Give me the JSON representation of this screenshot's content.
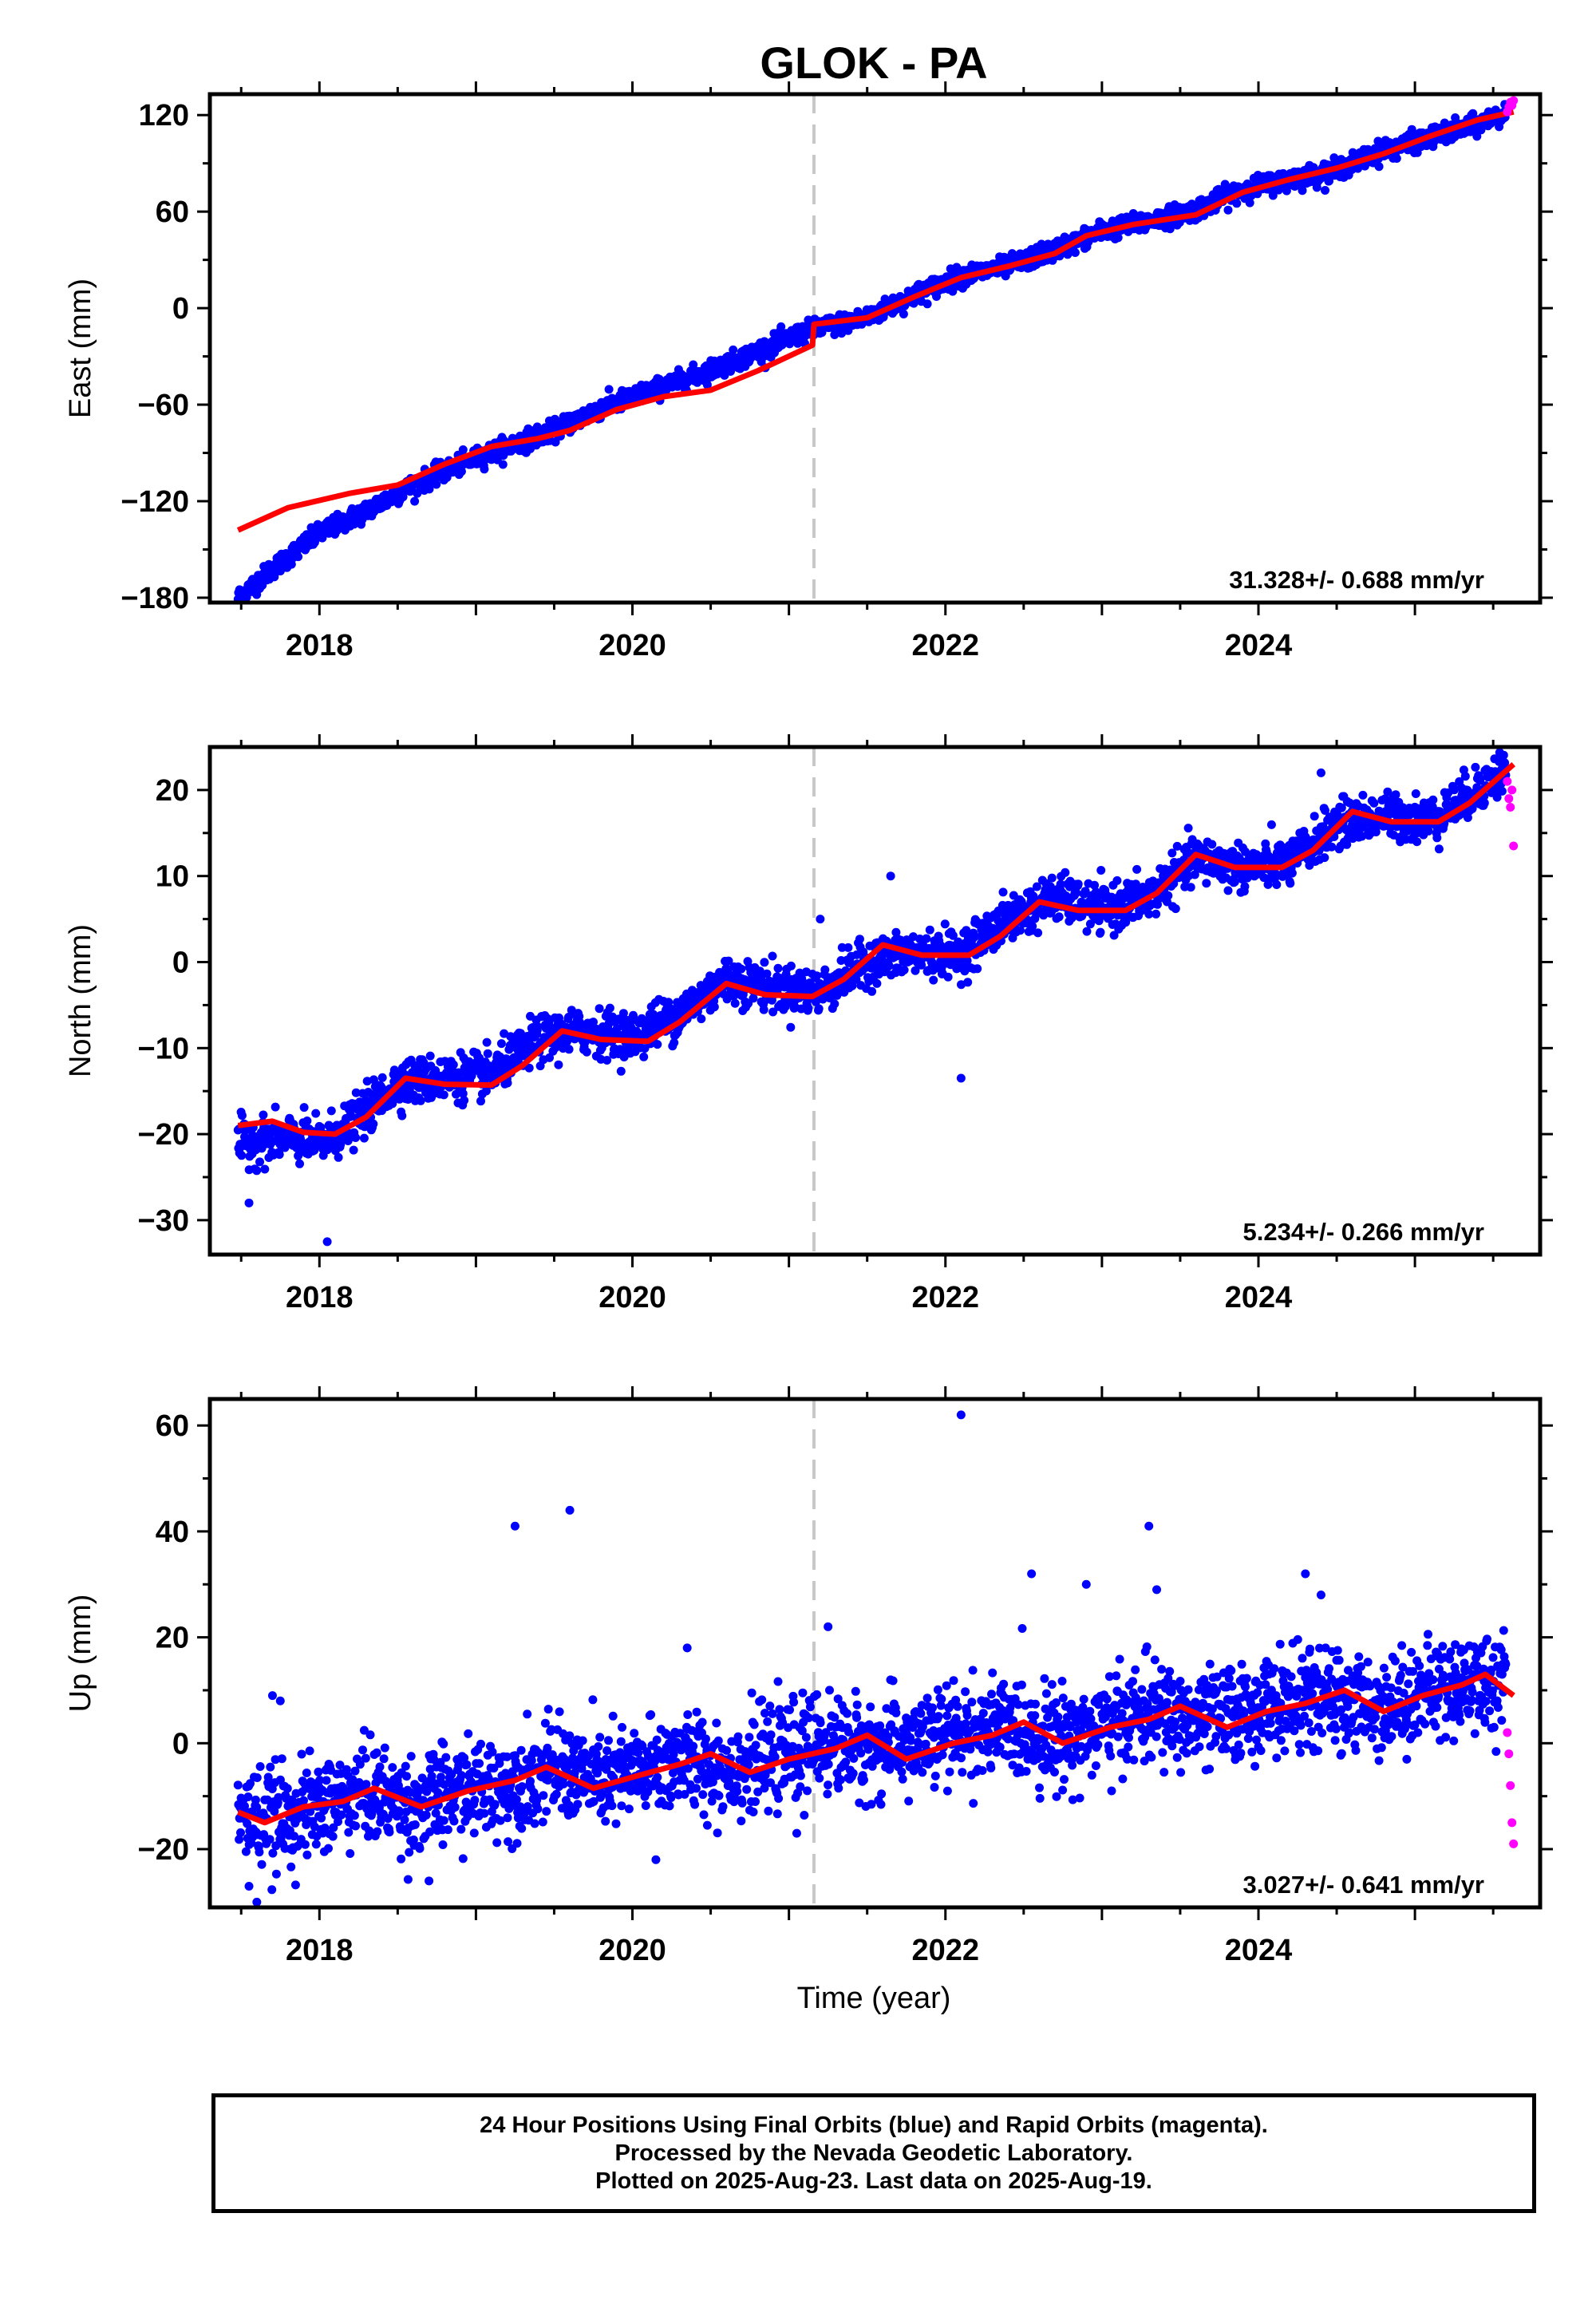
{
  "title": "GLOK - PA",
  "x_axis_label": "Time (year)",
  "footer": {
    "line1": "24 Hour Positions Using Final Orbits (blue) and Rapid Orbits (magenta).",
    "line2": "Processed by the Nevada Geodetic Laboratory.",
    "line3": "Plotted on 2025-Aug-23. Last data on 2025-Aug-19."
  },
  "colors": {
    "final_orbits": "#0000ff",
    "rapid_orbits": "#ff00ff",
    "model": "#ff0000",
    "event_line": "#c8c8c8",
    "axes": "#000000"
  },
  "chart_data": [
    {
      "type": "scatter",
      "component": "East",
      "ylabel": "East (mm)",
      "xlim": [
        2017.3,
        2025.8
      ],
      "ylim": [
        -183,
        133
      ],
      "xticks": [
        2018,
        2020,
        2022,
        2024
      ],
      "yticks": [
        -180,
        -120,
        -60,
        0,
        60,
        120
      ],
      "rate_text": "31.328+/- 0.688 mm/yr",
      "event_line_x": 2021.16,
      "start_x": 2017.48,
      "end_final_x": 2025.58,
      "end_x": 2025.63,
      "series": [
        {
          "name": "Final Orbits",
          "color": "#0000ff",
          "trend": [
            [
              2017.48,
              -180
            ],
            [
              2017.7,
              -162
            ],
            [
              2018.0,
              -140
            ],
            [
              2018.3,
              -126
            ],
            [
              2018.6,
              -110
            ],
            [
              2018.9,
              -97
            ],
            [
              2019.2,
              -86
            ],
            [
              2019.5,
              -76
            ],
            [
              2019.8,
              -62
            ],
            [
              2020.1,
              -52
            ],
            [
              2020.4,
              -42
            ],
            [
              2020.7,
              -31
            ],
            [
              2021.0,
              -19
            ],
            [
              2021.16,
              -13
            ],
            [
              2021.5,
              -6
            ],
            [
              2021.8,
              8
            ],
            [
              2022.1,
              20
            ],
            [
              2022.4,
              26
            ],
            [
              2022.7,
              36
            ],
            [
              2023.0,
              48
            ],
            [
              2023.3,
              54
            ],
            [
              2023.6,
              61
            ],
            [
              2023.9,
              74
            ],
            [
              2024.2,
              80
            ],
            [
              2024.5,
              86
            ],
            [
              2024.8,
              98
            ],
            [
              2025.1,
              106
            ],
            [
              2025.4,
              114
            ],
            [
              2025.58,
              122
            ]
          ],
          "noise": 3.0
        },
        {
          "name": "Rapid Orbits",
          "color": "#ff00ff",
          "points": [
            [
              2025.59,
              122
            ],
            [
              2025.6,
              125
            ],
            [
              2025.61,
              128
            ],
            [
              2025.62,
              126
            ],
            [
              2025.63,
              129
            ]
          ]
        }
      ],
      "model": [
        [
          2017.48,
          -138
        ],
        [
          2017.8,
          -124
        ],
        [
          2018.2,
          -115
        ],
        [
          2018.5,
          -110
        ],
        [
          2018.8,
          -97
        ],
        [
          2019.1,
          -86
        ],
        [
          2019.4,
          -81
        ],
        [
          2019.6,
          -76
        ],
        [
          2019.9,
          -63
        ],
        [
          2020.2,
          -55
        ],
        [
          2020.5,
          -51
        ],
        [
          2020.8,
          -39
        ],
        [
          2021.15,
          -23
        ],
        [
          2021.16,
          -10
        ],
        [
          2021.5,
          -6
        ],
        [
          2021.8,
          7
        ],
        [
          2022.1,
          19
        ],
        [
          2022.4,
          26
        ],
        [
          2022.7,
          34
        ],
        [
          2022.9,
          45
        ],
        [
          2023.2,
          52
        ],
        [
          2023.6,
          58
        ],
        [
          2023.9,
          72
        ],
        [
          2024.2,
          80
        ],
        [
          2024.5,
          87
        ],
        [
          2024.8,
          96
        ],
        [
          2025.1,
          107
        ],
        [
          2025.4,
          117
        ],
        [
          2025.63,
          122
        ]
      ]
    },
    {
      "type": "scatter",
      "component": "North",
      "ylabel": "North (mm)",
      "xlim": [
        2017.3,
        2025.8
      ],
      "ylim": [
        -34,
        25
      ],
      "xticks": [
        2018,
        2020,
        2022,
        2024
      ],
      "yticks": [
        -30,
        -20,
        -10,
        0,
        10,
        20
      ],
      "rate_text": "5.234+/- 0.266 mm/yr",
      "event_line_x": 2021.16,
      "start_x": 2017.48,
      "end_final_x": 2025.58,
      "end_x": 2025.63,
      "series": [
        {
          "name": "Final Orbits",
          "color": "#0000ff",
          "trend": [
            [
              2017.48,
              -21
            ],
            [
              2017.8,
              -20.5
            ],
            [
              2018.0,
              -21
            ],
            [
              2018.2,
              -19
            ],
            [
              2018.5,
              -14
            ],
            [
              2018.8,
              -13.5
            ],
            [
              2019.1,
              -13
            ],
            [
              2019.4,
              -9
            ],
            [
              2019.7,
              -8
            ],
            [
              2020.0,
              -8.5
            ],
            [
              2020.3,
              -6
            ],
            [
              2020.6,
              -2
            ],
            [
              2020.9,
              -3
            ],
            [
              2021.2,
              -3.5
            ],
            [
              2021.5,
              0
            ],
            [
              2021.8,
              1
            ],
            [
              2022.1,
              1
            ],
            [
              2022.4,
              5
            ],
            [
              2022.7,
              7.5
            ],
            [
              2023.0,
              6
            ],
            [
              2023.3,
              7.5
            ],
            [
              2023.6,
              12
            ],
            [
              2023.9,
              11
            ],
            [
              2024.2,
              11.5
            ],
            [
              2024.5,
              16
            ],
            [
              2024.8,
              17
            ],
            [
              2025.1,
              16.5
            ],
            [
              2025.4,
              20
            ],
            [
              2025.58,
              22.5
            ]
          ],
          "noise": 1.3,
          "outliers": [
            [
              2017.55,
              -28
            ],
            [
              2018.05,
              -32.5
            ],
            [
              2021.2,
              5
            ],
            [
              2022.1,
              -13.5
            ],
            [
              2021.65,
              10
            ],
            [
              2023.6,
              13.5
            ],
            [
              2024.4,
              22
            ]
          ]
        },
        {
          "name": "Rapid Orbits",
          "color": "#ff00ff",
          "points": [
            [
              2025.59,
              21
            ],
            [
              2025.6,
              19
            ],
            [
              2025.61,
              18
            ],
            [
              2025.62,
              20
            ],
            [
              2025.63,
              13.5
            ]
          ]
        }
      ],
      "model": [
        [
          2017.48,
          -19
        ],
        [
          2017.7,
          -18.5
        ],
        [
          2017.9,
          -19.8
        ],
        [
          2018.1,
          -20
        ],
        [
          2018.3,
          -18
        ],
        [
          2018.55,
          -13.5
        ],
        [
          2018.8,
          -14.2
        ],
        [
          2019.1,
          -14.3
        ],
        [
          2019.3,
          -12
        ],
        [
          2019.55,
          -8
        ],
        [
          2019.8,
          -9
        ],
        [
          2020.1,
          -9.2
        ],
        [
          2020.3,
          -7
        ],
        [
          2020.6,
          -2.5
        ],
        [
          2020.85,
          -3.8
        ],
        [
          2021.15,
          -4
        ],
        [
          2021.35,
          -2
        ],
        [
          2021.6,
          2
        ],
        [
          2021.85,
          0.8
        ],
        [
          2022.15,
          0.8
        ],
        [
          2022.35,
          3
        ],
        [
          2022.6,
          7
        ],
        [
          2022.85,
          6
        ],
        [
          2023.15,
          6
        ],
        [
          2023.35,
          8
        ],
        [
          2023.6,
          12.5
        ],
        [
          2023.85,
          11
        ],
        [
          2024.15,
          11
        ],
        [
          2024.35,
          13
        ],
        [
          2024.6,
          17.5
        ],
        [
          2024.85,
          16.3
        ],
        [
          2025.15,
          16.3
        ],
        [
          2025.35,
          18.5
        ],
        [
          2025.63,
          23
        ]
      ]
    },
    {
      "type": "scatter",
      "component": "Up",
      "ylabel": "Up (mm)",
      "xlim": [
        2017.3,
        2025.8
      ],
      "ylim": [
        -31,
        65
      ],
      "xticks": [
        2018,
        2020,
        2022,
        2024
      ],
      "yticks": [
        -20,
        0,
        20,
        40,
        60
      ],
      "rate_text": "3.027+/- 0.641 mm/yr",
      "event_line_x": 2021.16,
      "start_x": 2017.48,
      "end_final_x": 2025.58,
      "end_x": 2025.63,
      "series": [
        {
          "name": "Final Orbits",
          "color": "#0000ff",
          "trend": [
            [
              2017.48,
              -14
            ],
            [
              2017.8,
              -14
            ],
            [
              2018.1,
              -11
            ],
            [
              2018.3,
              -9
            ],
            [
              2018.6,
              -12
            ],
            [
              2018.9,
              -9
            ],
            [
              2019.2,
              -8
            ],
            [
              2019.5,
              -5
            ],
            [
              2019.8,
              -7
            ],
            [
              2020.1,
              -5
            ],
            [
              2020.3,
              -3
            ],
            [
              2020.6,
              -5
            ],
            [
              2020.9,
              -3
            ],
            [
              2021.2,
              0
            ],
            [
              2021.5,
              -1
            ],
            [
              2021.8,
              0
            ],
            [
              2022.1,
              2
            ],
            [
              2022.4,
              3
            ],
            [
              2022.7,
              1
            ],
            [
              2023.0,
              3
            ],
            [
              2023.3,
              6
            ],
            [
              2023.6,
              4
            ],
            [
              2023.9,
              6
            ],
            [
              2024.2,
              8
            ],
            [
              2024.5,
              8
            ],
            [
              2024.8,
              7
            ],
            [
              2025.1,
              10
            ],
            [
              2025.4,
              12
            ],
            [
              2025.58,
              10
            ]
          ],
          "noise": 4.5,
          "outliers": [
            [
              2019.25,
              41
            ],
            [
              2019.6,
              44
            ],
            [
              2022.1,
              62
            ],
            [
              2022.55,
              32
            ],
            [
              2023.3,
              41
            ],
            [
              2023.35,
              29
            ],
            [
              2024.3,
              32
            ],
            [
              2024.4,
              28
            ],
            [
              2022.9,
              30
            ],
            [
              2021.25,
              22
            ],
            [
              2020.35,
              18
            ],
            [
              2017.7,
              9
            ],
            [
              2017.6,
              -30
            ],
            [
              2017.55,
              -27
            ],
            [
              2018.7,
              -26
            ],
            [
              2020.15,
              -22
            ],
            [
              2021.05,
              -17
            ],
            [
              2017.75,
              8
            ]
          ]
        },
        {
          "name": "Rapid Orbits",
          "color": "#ff00ff",
          "points": [
            [
              2025.59,
              2
            ],
            [
              2025.6,
              -2
            ],
            [
              2025.61,
              -8
            ],
            [
              2025.62,
              -15
            ],
            [
              2025.63,
              -19
            ]
          ]
        }
      ],
      "model": [
        [
          2017.48,
          -13
        ],
        [
          2017.65,
          -15
        ],
        [
          2017.9,
          -12
        ],
        [
          2018.15,
          -11
        ],
        [
          2018.35,
          -8.5
        ],
        [
          2018.65,
          -12
        ],
        [
          2018.95,
          -9
        ],
        [
          2019.25,
          -7
        ],
        [
          2019.45,
          -4.5
        ],
        [
          2019.75,
          -8.5
        ],
        [
          2020.05,
          -6
        ],
        [
          2020.3,
          -4
        ],
        [
          2020.5,
          -2
        ],
        [
          2020.75,
          -5.5
        ],
        [
          2021.0,
          -3
        ],
        [
          2021.3,
          -1
        ],
        [
          2021.5,
          1.5
        ],
        [
          2021.75,
          -3
        ],
        [
          2022.05,
          0
        ],
        [
          2022.3,
          1.5
        ],
        [
          2022.5,
          4
        ],
        [
          2022.75,
          0
        ],
        [
          2023.05,
          3
        ],
        [
          2023.3,
          4.5
        ],
        [
          2023.5,
          7
        ],
        [
          2023.8,
          3
        ],
        [
          2024.05,
          6
        ],
        [
          2024.3,
          7.5
        ],
        [
          2024.55,
          10
        ],
        [
          2024.8,
          6
        ],
        [
          2025.05,
          9
        ],
        [
          2025.3,
          11
        ],
        [
          2025.45,
          13
        ],
        [
          2025.63,
          9
        ]
      ]
    }
  ]
}
